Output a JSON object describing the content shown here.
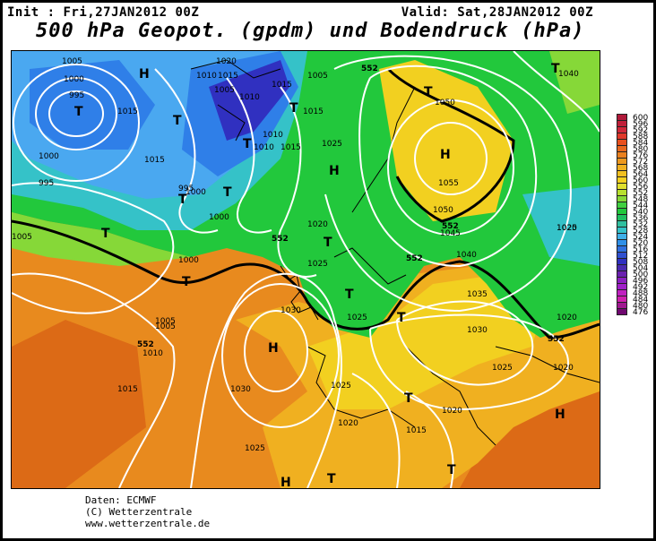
{
  "header": {
    "init": "Init : Fri,27JAN2012 00Z",
    "valid": "Valid: Sat,28JAN2012 00Z",
    "title": "500 hPa Geopot. (gpdm) und Bodendruck (hPa)"
  },
  "map": {
    "pressure_labels": [
      "1005",
      "1000",
      "995",
      "1015",
      "1000",
      "995",
      "1015",
      "1020",
      "1010",
      "1015",
      "1005",
      "1010",
      "1015",
      "1010",
      "1015",
      "1010",
      "1015",
      "1005",
      "1005",
      "1025",
      "1000",
      "995",
      "1000",
      "1025",
      "1020",
      "1025",
      "1030",
      "1005",
      "1010",
      "1015",
      "1030",
      "1025",
      "1025",
      "1020",
      "1015",
      "1020",
      "1040",
      "1050",
      "1055",
      "1050",
      "1045",
      "1040",
      "1035",
      "1030",
      "1025",
      "1020",
      "1020",
      "1025",
      "1020",
      "1000",
      "1005"
    ],
    "geopot_labels": [
      "552",
      "552",
      "552",
      "552",
      "552",
      "552"
    ],
    "high_marks": [
      "H",
      "H",
      "H",
      "H",
      "H",
      "H"
    ],
    "low_marks": [
      "T",
      "T",
      "T",
      "T",
      "T",
      "T",
      "T",
      "T",
      "T",
      "T",
      "T",
      "T",
      "T",
      "T",
      "T",
      "T"
    ],
    "colors": {
      "deep_blue": "#3030c0",
      "blue": "#2f7fe8",
      "sky": "#4aa8f0",
      "teal": "#35c2c8",
      "green": "#22c83c",
      "lime": "#86d838",
      "yellow": "#f2d020",
      "gold": "#f0b020",
      "orange": "#e88a1e",
      "dark_orange": "#dc6a16",
      "isobar": "#ffffff",
      "coast": "#000000"
    }
  },
  "colorbar": {
    "labels": [
      "600",
      "596",
      "592",
      "588",
      "584",
      "580",
      "576",
      "572",
      "568",
      "564",
      "560",
      "556",
      "552",
      "548",
      "544",
      "540",
      "536",
      "532",
      "528",
      "524",
      "520",
      "516",
      "512",
      "508",
      "504",
      "500",
      "496",
      "492",
      "488",
      "484",
      "480",
      "476"
    ],
    "colors": [
      "#b01a3a",
      "#c0203a",
      "#d0283a",
      "#e0382a",
      "#e8501e",
      "#e8681e",
      "#ea801e",
      "#ec981e",
      "#f0b020",
      "#f2c020",
      "#f4d020",
      "#e0e030",
      "#b8e030",
      "#86d838",
      "#40d040",
      "#22c83c",
      "#20c060",
      "#30c0a0",
      "#35c2c8",
      "#40b0e8",
      "#2f90e8",
      "#2f70e0",
      "#3050d0",
      "#3030c0",
      "#4a2ab0",
      "#6a20b0",
      "#8a20c0",
      "#a020c8",
      "#c020c0",
      "#d020b0",
      "#a01890",
      "#700870"
    ]
  },
  "footer": {
    "line1": "Daten: ECMWF",
    "line2": "(C) Wetterzentrale",
    "line3": "www.wetterzentrale.de"
  }
}
